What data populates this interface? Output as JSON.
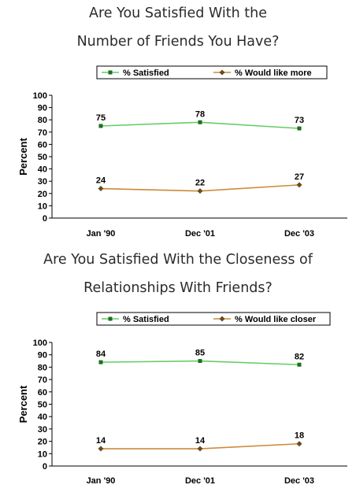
{
  "titles": [
    {
      "line1": "Are You Satisfied With the",
      "line2": "Number of Friends You Have?"
    },
    {
      "line1": "Are You Satisfied With the Closeness of",
      "line2": "Relationships With Friends?"
    }
  ],
  "chart_data": [
    {
      "type": "line",
      "title": "Are You Satisfied With the Number of Friends You Have?",
      "ylabel": "Percent",
      "xlabel": "",
      "categories": [
        "Jan '90",
        "Dec '01",
        "Dec '03"
      ],
      "yticks": [
        "0",
        "10",
        "20",
        "30",
        "40",
        "50",
        "60",
        "70",
        "80",
        "90",
        "100"
      ],
      "ylim": [
        0,
        100
      ],
      "grid": false,
      "legend_position": "top",
      "series": [
        {
          "name": "% Satisfied",
          "values": [
            75,
            78,
            73
          ],
          "labels": [
            "75",
            "78",
            "73"
          ],
          "color": "#66cc66",
          "marker_color": "#1e6e1e",
          "marker": "square"
        },
        {
          "name": "% Would like more",
          "values": [
            24,
            22,
            27
          ],
          "labels": [
            "24",
            "22",
            "27"
          ],
          "color": "#cc8a3a",
          "marker_color": "#6b4a1e",
          "marker": "diamond"
        }
      ]
    },
    {
      "type": "line",
      "title": "Are You Satisfied With the Closeness of Relationships With Friends?",
      "ylabel": "Percent",
      "xlabel": "",
      "categories": [
        "Jan '90",
        "Dec '01",
        "Dec '03"
      ],
      "yticks": [
        "0",
        "10",
        "20",
        "30",
        "40",
        "50",
        "60",
        "70",
        "80",
        "90",
        "100"
      ],
      "ylim": [
        0,
        100
      ],
      "grid": false,
      "legend_position": "top",
      "series": [
        {
          "name": "% Satisfied",
          "values": [
            84,
            85,
            82
          ],
          "labels": [
            "84",
            "85",
            "82"
          ],
          "color": "#66cc66",
          "marker_color": "#1e6e1e",
          "marker": "square"
        },
        {
          "name": "% Would like closer",
          "values": [
            14,
            14,
            18
          ],
          "labels": [
            "14",
            "14",
            "18"
          ],
          "color": "#cc8a3a",
          "marker_color": "#6b4a1e",
          "marker": "diamond"
        }
      ]
    }
  ]
}
